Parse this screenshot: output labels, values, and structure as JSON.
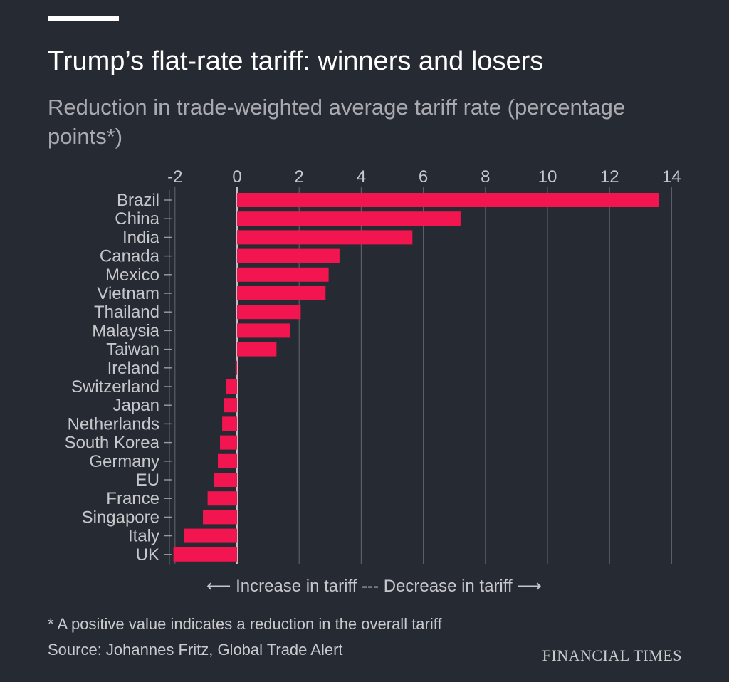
{
  "header": {
    "title": "Trump’s flat-rate tariff: winners and losers",
    "subtitle": "Reduction in trade-weighted average tariff rate (percentage points*)"
  },
  "direction_label": "⟵ Increase in tariff --- Decrease in tariff ⟶",
  "footer": {
    "footnote": "* A positive value indicates a reduction in the overall tariff",
    "source": "Source: Johannes Fritz, Global Trade Alert",
    "logo": "FINANCIAL TIMES"
  },
  "colors": {
    "background": "#262a33",
    "bar": "#f2154f",
    "gridline": "#5b5e66",
    "axis_text": "#c6c7cb"
  },
  "chart_data": {
    "type": "bar",
    "orientation": "horizontal",
    "xlim": [
      -2,
      14
    ],
    "xticks": [
      -2,
      0,
      2,
      4,
      6,
      8,
      10,
      12,
      14
    ],
    "tick_labels": [
      "-2",
      "0",
      "2",
      "4",
      "6",
      "8",
      "10",
      "12",
      "14"
    ],
    "grid": true,
    "categories": [
      "Brazil",
      "China",
      "India",
      "Canada",
      "Mexico",
      "Vietnam",
      "Thailand",
      "Malaysia",
      "Taiwan",
      "Ireland",
      "Switzerland",
      "Japan",
      "Netherlands",
      "South Korea",
      "Germany",
      "EU",
      "France",
      "Singapore",
      "Italy",
      "UK"
    ],
    "values": [
      13.6,
      7.2,
      5.65,
      3.3,
      2.95,
      2.85,
      2.05,
      1.72,
      1.27,
      -0.05,
      -0.35,
      -0.42,
      -0.48,
      -0.55,
      -0.62,
      -0.75,
      -0.95,
      -1.1,
      -1.7,
      -2.05
    ]
  }
}
